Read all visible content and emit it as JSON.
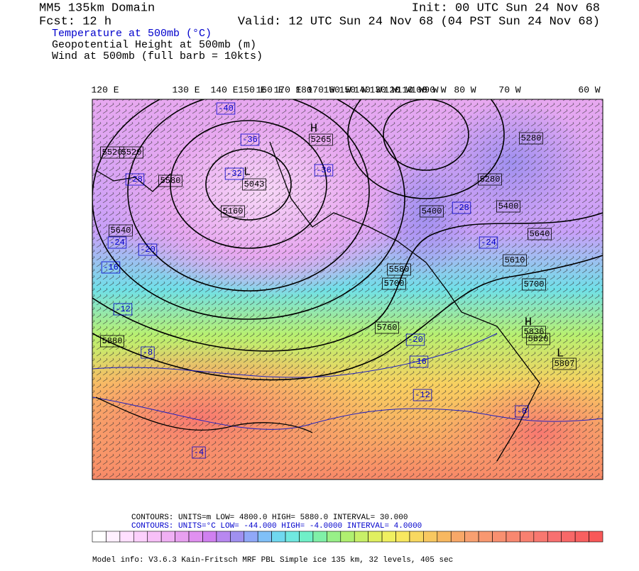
{
  "header": {
    "domain": "MM5 135km Domain",
    "init": "Init: 00 UTC Sun 24 Nov 68",
    "fcst": "Fcst:   12 h",
    "valid": "Valid: 12 UTC Sun 24 Nov 68 (04 PST Sun 24 Nov 68)",
    "fields": [
      "Temperature at 500mb (°C)",
      "Geopotential Height at 500mb (m)",
      "Wind at 500mb (full barb = 10kts)"
    ]
  },
  "top_axis": [
    "120 E",
    "130 E",
    "140 E",
    "150 E",
    "160 E",
    "170 E",
    "180",
    "170 W",
    "160 W",
    "150 W",
    "140 W",
    "130 W",
    "120 W",
    "110 W",
    "100 W",
    "90 W",
    "80 W",
    "70 W",
    "60 W"
  ],
  "height_labels": [
    "5520",
    "5580",
    "5640",
    "5880",
    "5265",
    "5043",
    "5160",
    "5400",
    "5580",
    "5700",
    "5760",
    "5520",
    "5640",
    "5610",
    "5700",
    "5820",
    "5836",
    "5807",
    "5280",
    "5400",
    "5280"
  ],
  "highs_lows": [
    "H",
    "L",
    "H",
    "L"
  ],
  "temperature_labels": [
    "-40",
    "-36",
    "-36",
    "-32",
    "-28",
    "-24",
    "-20",
    "-16",
    "-12",
    "-8",
    "-4",
    "-8",
    "-12",
    "-16",
    "-20",
    "-24",
    "-28"
  ],
  "footer": {
    "height_contours": "CONTOURS:  UNITS=m  LOW=   4800.0      HIGH=  5880.0      INTERVAL=     30.000",
    "temperature_contours": "CONTOURS:  UNITS=°C  LOW= -44.000       HIGH= -4.0000       INTERVAL=    4.0000",
    "model_info": "Model info: V3.6.3 Kain-Fritsch MRF PBL     Simple ice   135 km,  32 levels,  405 sec"
  }
}
